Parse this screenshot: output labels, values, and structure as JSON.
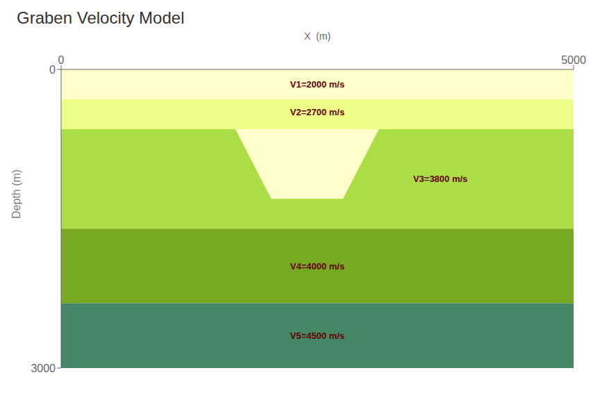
{
  "chart_data": {
    "type": "area",
    "title": "Graben Velocity Model",
    "x_label": "X  (m)",
    "y_label": "Depth (m)",
    "xlim": [
      0,
      5000
    ],
    "ylim": [
      3000,
      0
    ],
    "xticks": [
      0,
      5000
    ],
    "yticks": [
      0,
      3000
    ],
    "series": [
      {
        "color": "#FFFFCC",
        "values": [
          0,
          300
        ]
      },
      {
        "color": "#EEFF88",
        "values": [
          300,
          600
        ]
      },
      {
        "color": "#AADE44",
        "values": [
          600,
          1600
        ]
      },
      {
        "color": "#77AA22",
        "values": [
          1600,
          2350
        ]
      },
      {
        "color": "#448866",
        "values": [
          2350,
          3000
        ]
      },
      {
        "color": "#FFFFCC",
        "x": [
          1700,
          2050,
          2750,
          3100
        ],
        "values": [
          [
            600,
            600
          ],
          [
            600,
            1300
          ],
          [
            600,
            1300
          ],
          [
            600,
            600
          ]
        ]
      }
    ],
    "annotations": [
      {
        "text": "V1=2000 m/s",
        "x": 2500,
        "y": 150,
        "color": "#660000"
      },
      {
        "text": "V2=2700 m/s",
        "x": 2500,
        "y": 430,
        "color": "#660000"
      },
      {
        "text": "V3=3800 m/s",
        "x": 3700,
        "y": 1100,
        "color": "#660000"
      },
      {
        "text": "V4=4000 m/s",
        "x": 2500,
        "y": 1975,
        "color": "#660000"
      },
      {
        "text": "V5=4500 m/s",
        "x": 2500,
        "y": 2675,
        "color": "#660000"
      }
    ]
  }
}
